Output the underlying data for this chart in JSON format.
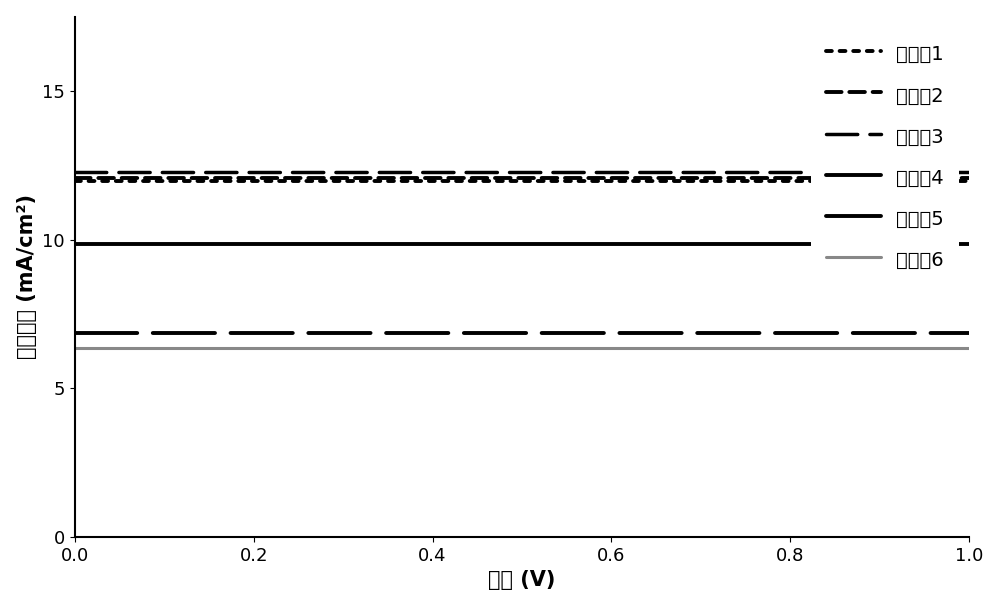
{
  "title": "",
  "xlabel": "电压 (V)",
  "ylabel": "电流密度 (mA/cm²)",
  "xlim": [
    0,
    1
  ],
  "ylim": [
    0,
    17.5
  ],
  "yticks": [
    0,
    5,
    10,
    15
  ],
  "xticks": [
    0,
    0.2,
    0.4,
    0.6,
    0.8,
    1.0
  ],
  "curves": [
    {
      "label": "实施例1",
      "color": "#000000",
      "linestyle": "dotted",
      "linewidth": 2.8,
      "jsc": 16.5,
      "voc": 0.875,
      "n_ideality": 2.8,
      "rs": 0.8,
      "rsh": 120
    },
    {
      "label": "实施例2",
      "color": "#000000",
      "linestyle": "dashed_short",
      "linewidth": 2.8,
      "jsc": 13.2,
      "voc": 0.825,
      "n_ideality": 2.2,
      "rs": 2.5,
      "rsh": 60
    },
    {
      "label": "实施例3",
      "color": "#000000",
      "linestyle": "dashed_long",
      "linewidth": 2.5,
      "jsc": 13.0,
      "voc": 0.82,
      "n_ideality": 2.0,
      "rs": 3.5,
      "rsh": 50
    },
    {
      "label": "实施例4",
      "color": "#000000",
      "linestyle": "dashed_vlong",
      "linewidth": 2.8,
      "jsc": 8.0,
      "voc": 0.82,
      "n_ideality": 2.2,
      "rs": 2.5,
      "rsh": 70
    },
    {
      "label": "实施例5",
      "color": "#000000",
      "linestyle": "solid",
      "linewidth": 2.8,
      "jsc": 11.0,
      "voc": 0.82,
      "n_ideality": 2.2,
      "rs": 2.5,
      "rsh": 60
    },
    {
      "label": "实施例6",
      "color": "#888888",
      "linestyle": "solid",
      "linewidth": 2.2,
      "jsc": 7.5,
      "voc": 0.825,
      "n_ideality": 2.2,
      "rs": 2.5,
      "rsh": 70
    }
  ],
  "legend_fontsize": 14,
  "axis_fontsize": 15,
  "tick_fontsize": 13,
  "background_color": "#ffffff"
}
